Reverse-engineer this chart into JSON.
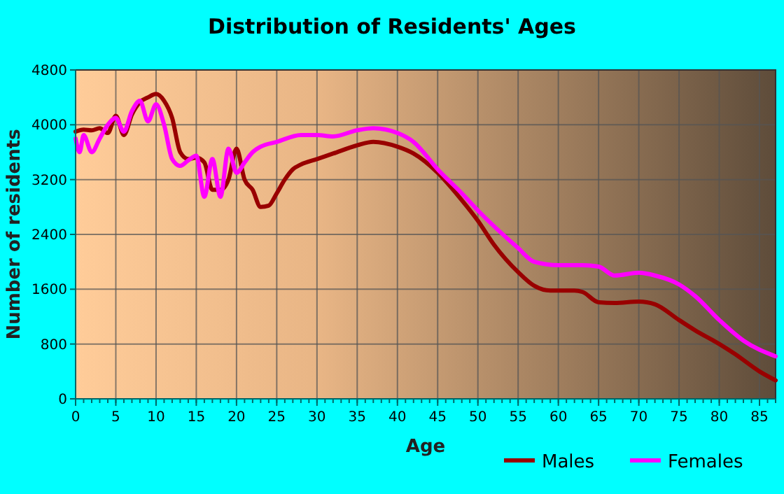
{
  "chart_data": {
    "type": "line",
    "title": "Distribution of Residents' Ages",
    "xlabel": "Age",
    "ylabel": "Number of residents",
    "xlim": [
      0,
      87
    ],
    "xticks": [
      0,
      5,
      10,
      15,
      20,
      25,
      30,
      35,
      40,
      45,
      50,
      55,
      60,
      65,
      70,
      75,
      80,
      85
    ],
    "ylim": [
      0,
      4800
    ],
    "yticks": [
      0,
      800,
      1600,
      2400,
      3200,
      4000,
      4800
    ],
    "grid": true,
    "legend": "bottom right",
    "line_style": "solid",
    "marker": "none",
    "series": [
      {
        "name": "Males",
        "color": "#990000",
        "x": [
          0,
          1,
          2,
          3,
          4,
          5,
          6,
          7,
          8,
          9,
          10,
          11,
          12,
          13,
          14,
          15,
          16,
          17,
          18,
          19,
          20,
          21,
          22,
          23,
          24,
          25,
          26,
          27,
          28,
          30,
          32,
          35,
          37,
          40,
          42,
          45,
          48,
          50,
          52,
          55,
          57,
          59,
          62,
          63,
          65,
          67,
          70,
          72,
          75,
          77,
          80,
          82,
          85,
          87
        ],
        "values": [
          3900,
          3930,
          3920,
          3950,
          3880,
          4130,
          3850,
          4150,
          4330,
          4400,
          4450,
          4350,
          4100,
          3600,
          3500,
          3520,
          3450,
          3050,
          3050,
          3200,
          3650,
          3200,
          3050,
          2800,
          2820,
          3000,
          3200,
          3350,
          3420,
          3500,
          3580,
          3700,
          3750,
          3680,
          3580,
          3300,
          2900,
          2600,
          2250,
          1850,
          1650,
          1580,
          1580,
          1560,
          1410,
          1400,
          1420,
          1380,
          1150,
          1000,
          800,
          650,
          400,
          270
        ]
      },
      {
        "name": "Females",
        "color": "#ff00ff",
        "x": [
          0,
          0.5,
          1,
          2,
          3,
          4,
          5,
          6,
          7,
          8,
          9,
          10,
          11,
          12,
          13,
          14,
          15,
          16,
          17,
          18,
          19,
          20,
          21,
          22,
          23,
          25,
          28,
          30,
          32,
          35,
          37,
          40,
          42,
          45,
          48,
          50,
          55,
          57,
          60,
          63,
          65,
          67,
          70,
          72,
          75,
          77,
          80,
          83,
          87
        ],
        "values": [
          3800,
          3600,
          3850,
          3600,
          3800,
          4000,
          4100,
          3900,
          4200,
          4350,
          4050,
          4300,
          4000,
          3500,
          3400,
          3480,
          3550,
          2950,
          3500,
          2950,
          3650,
          3300,
          3450,
          3600,
          3680,
          3750,
          3850,
          3850,
          3830,
          3920,
          3950,
          3880,
          3750,
          3350,
          3000,
          2750,
          2200,
          2000,
          1950,
          1950,
          1930,
          1800,
          1840,
          1800,
          1670,
          1500,
          1150,
          850,
          620
        ]
      }
    ]
  }
}
